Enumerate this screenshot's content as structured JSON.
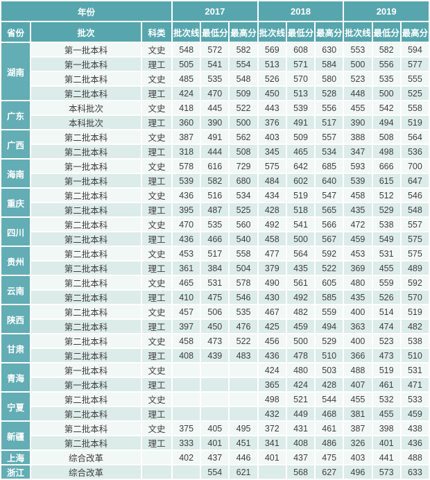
{
  "table": {
    "header": {
      "year_label": "年份",
      "col_province": "省份",
      "col_batch": "批次",
      "col_category": "科类",
      "years": [
        "2017",
        "2018",
        "2019"
      ],
      "sub_columns": [
        "批次线",
        "最低分",
        "最高分"
      ]
    },
    "colors": {
      "header_bg": "#57a6ae",
      "province_bg": "#63adb4",
      "row_light": "#f2f8f5",
      "row_dark": "#dcece8",
      "grid_lines": "#ffffff",
      "header_text": "#ffffff",
      "body_text": "#3e3e3e"
    }
  },
  "chart_data": {
    "type": "table",
    "title": "",
    "columns": [
      "省份",
      "批次",
      "科类",
      "2017 批次线",
      "2017 最低分",
      "2017 最高分",
      "2018 批次线",
      "2018 最低分",
      "2018 最高分",
      "2019 批次线",
      "2019 最低分",
      "2019 最高分"
    ],
    "rows": [
      [
        "湖南",
        "第一批本科",
        "文史",
        "548",
        "572",
        "582",
        "569",
        "608",
        "630",
        "553",
        "582",
        "594"
      ],
      [
        "湖南",
        "第一批本科",
        "理工",
        "505",
        "541",
        "554",
        "513",
        "571",
        "584",
        "500",
        "556",
        "577"
      ],
      [
        "湖南",
        "第二批本科",
        "文史",
        "485",
        "535",
        "548",
        "526",
        "570",
        "580",
        "523",
        "535",
        "555"
      ],
      [
        "湖南",
        "第二批本科",
        "理工",
        "424",
        "470",
        "509",
        "450",
        "513",
        "528",
        "448",
        "500",
        "525"
      ],
      [
        "广东",
        "本科批次",
        "文史",
        "418",
        "445",
        "522",
        "443",
        "539",
        "556",
        "455",
        "542",
        "558"
      ],
      [
        "广东",
        "本科批次",
        "理工",
        "360",
        "390",
        "500",
        "376",
        "491",
        "517",
        "390",
        "494",
        "519"
      ],
      [
        "广西",
        "第二批本科",
        "文史",
        "387",
        "491",
        "562",
        "403",
        "509",
        "557",
        "388",
        "508",
        "564"
      ],
      [
        "广西",
        "第二批本科",
        "理工",
        "318",
        "444",
        "508",
        "345",
        "465",
        "534",
        "347",
        "498",
        "536"
      ],
      [
        "海南",
        "第一批本科",
        "文史",
        "578",
        "616",
        "729",
        "575",
        "642",
        "685",
        "593",
        "666",
        "700"
      ],
      [
        "海南",
        "第一批本科",
        "理工",
        "539",
        "582",
        "680",
        "484",
        "602",
        "640",
        "539",
        "615",
        "647"
      ],
      [
        "重庆",
        "第二批本科",
        "文史",
        "436",
        "516",
        "534",
        "434",
        "519",
        "547",
        "458",
        "512",
        "546"
      ],
      [
        "重庆",
        "第二批本科",
        "理工",
        "395",
        "487",
        "525",
        "428",
        "518",
        "565",
        "435",
        "529",
        "548"
      ],
      [
        "四川",
        "第二批本科",
        "文史",
        "470",
        "535",
        "560",
        "492",
        "541",
        "566",
        "472",
        "538",
        "557"
      ],
      [
        "四川",
        "第二批本科",
        "理工",
        "436",
        "466",
        "540",
        "458",
        "500",
        "567",
        "459",
        "549",
        "575"
      ],
      [
        "贵州",
        "第二批本科",
        "文史",
        "453",
        "517",
        "558",
        "477",
        "564",
        "592",
        "453",
        "531",
        "575"
      ],
      [
        "贵州",
        "第二批本科",
        "理工",
        "361",
        "384",
        "504",
        "379",
        "435",
        "522",
        "369",
        "455",
        "489"
      ],
      [
        "云南",
        "第二批本科",
        "文史",
        "465",
        "531",
        "578",
        "490",
        "561",
        "605",
        "480",
        "559",
        "592"
      ],
      [
        "云南",
        "第二批本科",
        "理工",
        "410",
        "475",
        "546",
        "430",
        "492",
        "585",
        "435",
        "526",
        "570"
      ],
      [
        "陕西",
        "第二批本科",
        "文史",
        "457",
        "506",
        "535",
        "467",
        "482",
        "559",
        "400",
        "514",
        "519"
      ],
      [
        "陕西",
        "第二批本科",
        "理工",
        "397",
        "450",
        "476",
        "425",
        "459",
        "494",
        "363",
        "474",
        "482"
      ],
      [
        "甘肃",
        "第二批本科",
        "文史",
        "458",
        "473",
        "522",
        "456",
        "500",
        "529",
        "400",
        "523",
        "538"
      ],
      [
        "甘肃",
        "第二批本科",
        "理工",
        "408",
        "439",
        "483",
        "436",
        "478",
        "510",
        "366",
        "473",
        "510"
      ],
      [
        "青海",
        "第一批本科",
        "文史",
        "",
        "",
        "",
        "424",
        "480",
        "503",
        "488",
        "519",
        "531"
      ],
      [
        "青海",
        "第一批本科",
        "理工",
        "",
        "",
        "",
        "365",
        "424",
        "428",
        "407",
        "461",
        "471"
      ],
      [
        "宁夏",
        "第二批本科",
        "文史",
        "",
        "",
        "",
        "498",
        "521",
        "544",
        "455",
        "532",
        "533"
      ],
      [
        "宁夏",
        "第二批本科",
        "理工",
        "",
        "",
        "",
        "432",
        "449",
        "468",
        "381",
        "455",
        "459"
      ],
      [
        "新疆",
        "第二批本科",
        "文史",
        "375",
        "405",
        "495",
        "372",
        "431",
        "461",
        "387",
        "398",
        "438"
      ],
      [
        "新疆",
        "第二批本科",
        "理工",
        "333",
        "401",
        "451",
        "341",
        "408",
        "486",
        "326",
        "401",
        "436"
      ],
      [
        "上海",
        "综合改革",
        "",
        "402",
        "437",
        "446",
        "401",
        "437",
        "475",
        "403",
        "441",
        "488"
      ],
      [
        "浙江",
        "综合改革",
        "",
        "",
        "554",
        "621",
        "",
        "568",
        "627",
        "496",
        "573",
        "633"
      ]
    ]
  }
}
